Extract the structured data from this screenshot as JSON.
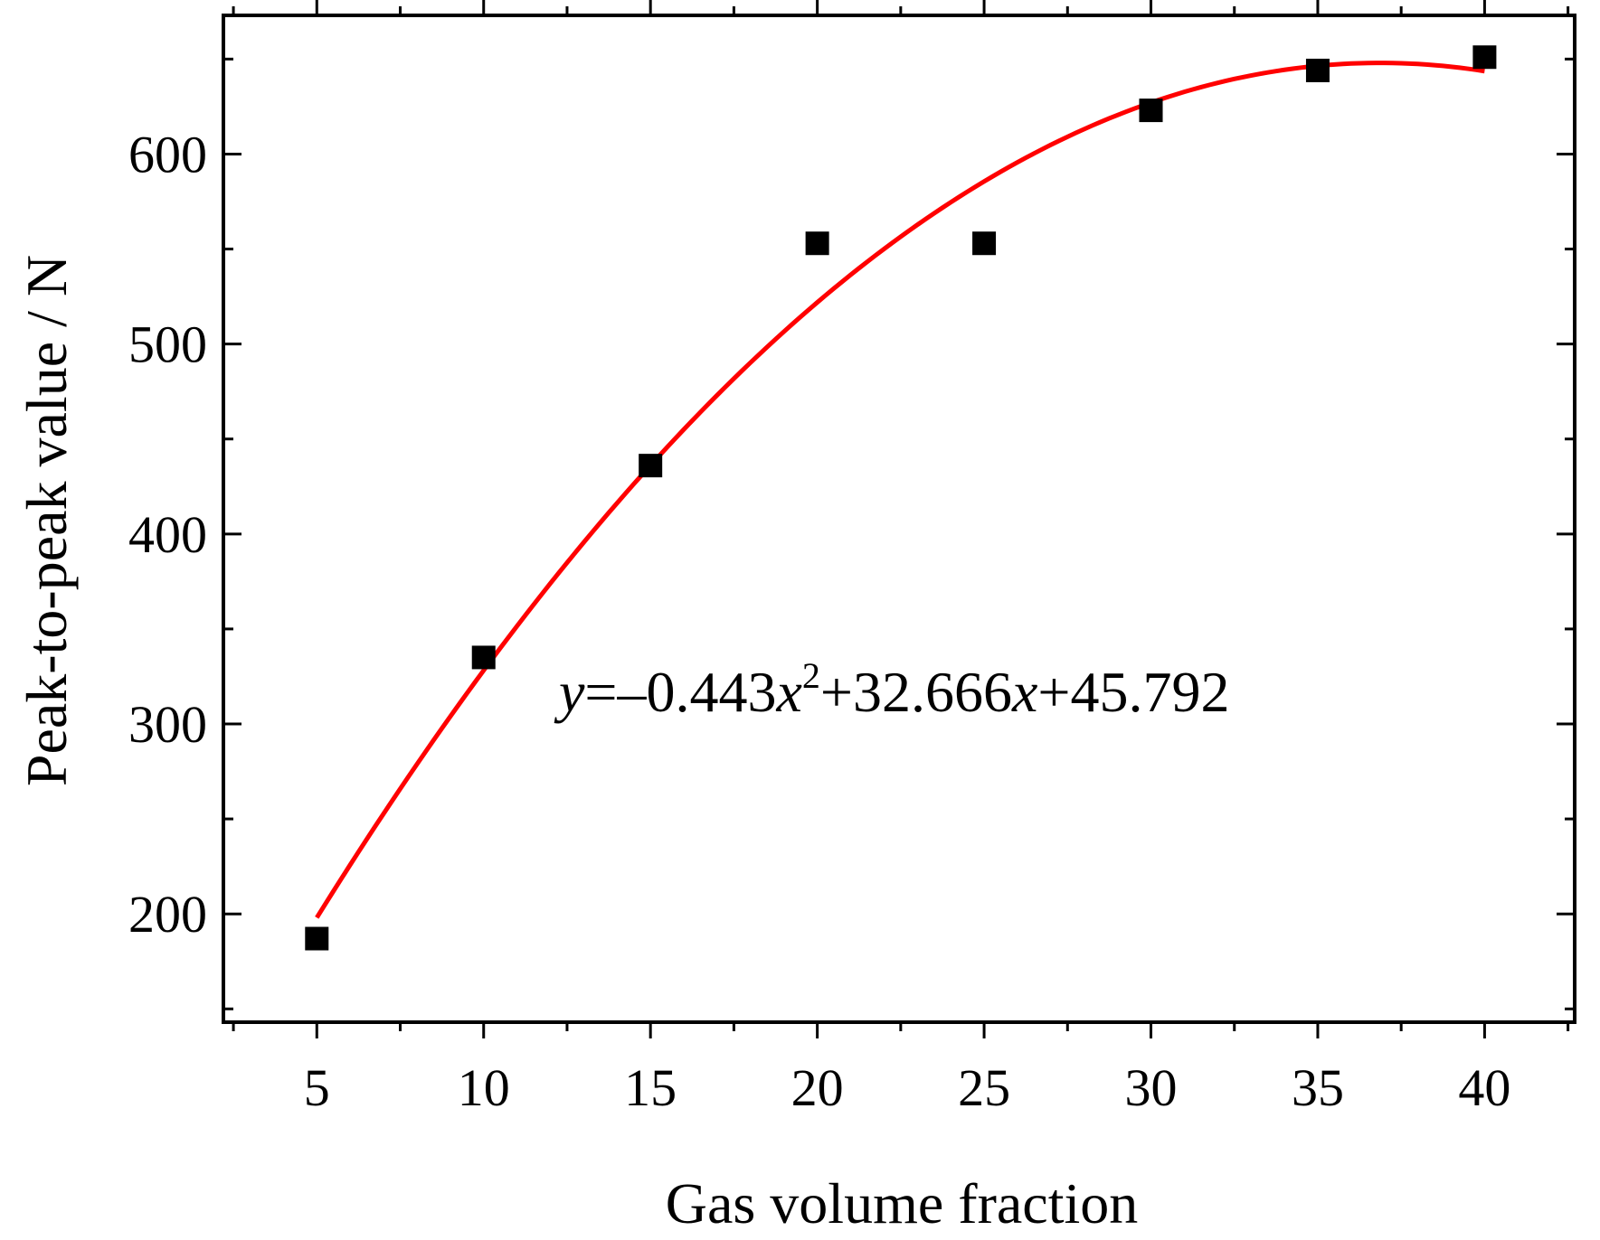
{
  "chart_data": {
    "type": "scatter",
    "xlabel": "Gas volume fraction",
    "ylabel": "Peak-to-peak value / N",
    "xlim": [
      2.2,
      42.7
    ],
    "ylim": [
      143,
      673
    ],
    "x_ticks": [
      "5",
      "10",
      "15",
      "20",
      "25",
      "30",
      "35",
      "40"
    ],
    "y_ticks": [
      "200",
      "300",
      "400",
      "500",
      "600"
    ],
    "x_tick_values": [
      5,
      10,
      15,
      20,
      25,
      30,
      35,
      40
    ],
    "y_tick_values": [
      200,
      300,
      400,
      500,
      600
    ],
    "grid": false,
    "series": [
      {
        "kind": "scatter",
        "marker": "square",
        "color": "#000000",
        "x": [
          5,
          10,
          15,
          20,
          25,
          30,
          35,
          40
        ],
        "y": [
          187,
          335,
          436,
          553,
          553,
          623,
          644,
          651
        ]
      },
      {
        "kind": "line",
        "color": "#ff0000",
        "x_range": [
          5,
          40
        ],
        "coefficients": [
          -0.443,
          32.666,
          45.792
        ]
      }
    ],
    "annotation": {
      "y": "y",
      "eq1": "=–0.443",
      "x1": "x",
      "sup": "2",
      "eq2": "+32.666",
      "x2": "x",
      "eq3": "+45.792"
    }
  }
}
